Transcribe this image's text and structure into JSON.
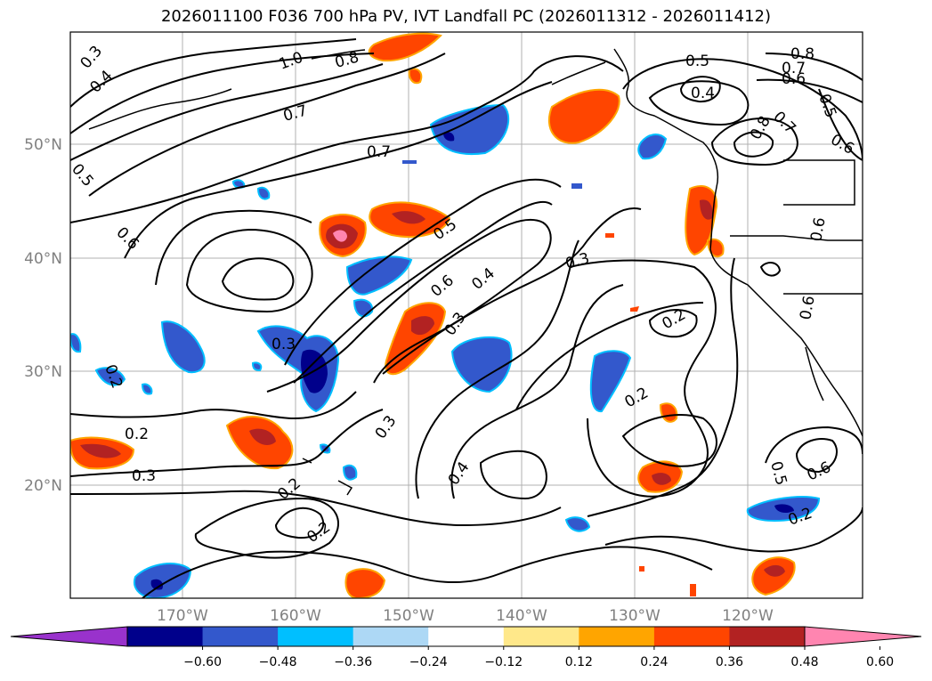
{
  "title": "2026011100 F036 700 hPa PV, IVT Landfall PC (2026011312 - 2026011412)",
  "lat_labels": [
    "50°N",
    "40°N",
    "30°N",
    "20°N"
  ],
  "lon_labels": [
    "170°W",
    "160°W",
    "150°W",
    "140°W",
    "130°W",
    "120°W"
  ],
  "contour_labels": [
    "0.3",
    "0.4",
    "1.0",
    "0.8",
    "0.7",
    "0.5",
    "0.4",
    "0.8",
    "0.7",
    "0.6",
    "0.5",
    "0.7",
    "0.8",
    "0.6",
    "0.7",
    "0.5",
    "0.6",
    "0.5",
    "0.3",
    "0.6",
    "0.4",
    "0.3",
    "0.6",
    "0.2",
    "0.3",
    "0.2",
    "0.2",
    "0.2",
    "0.3",
    "0.4",
    "0.2",
    "0.3",
    "0.2",
    "0.5",
    "0.6",
    "0.6",
    "0.2"
  ],
  "colorbar": {
    "ticks": [
      "−0.60",
      "−0.48",
      "−0.36",
      "−0.24",
      "−0.12",
      "0.12",
      "0.24",
      "0.36",
      "0.48",
      "0.60"
    ],
    "colors": [
      "#9932cc",
      "#00008b",
      "#3358cc",
      "#00bfff",
      "#add8f5",
      "#ffffff",
      "#ffe88a",
      "#ffa500",
      "#ff4500",
      "#b22222",
      "#ff85b0"
    ]
  }
}
